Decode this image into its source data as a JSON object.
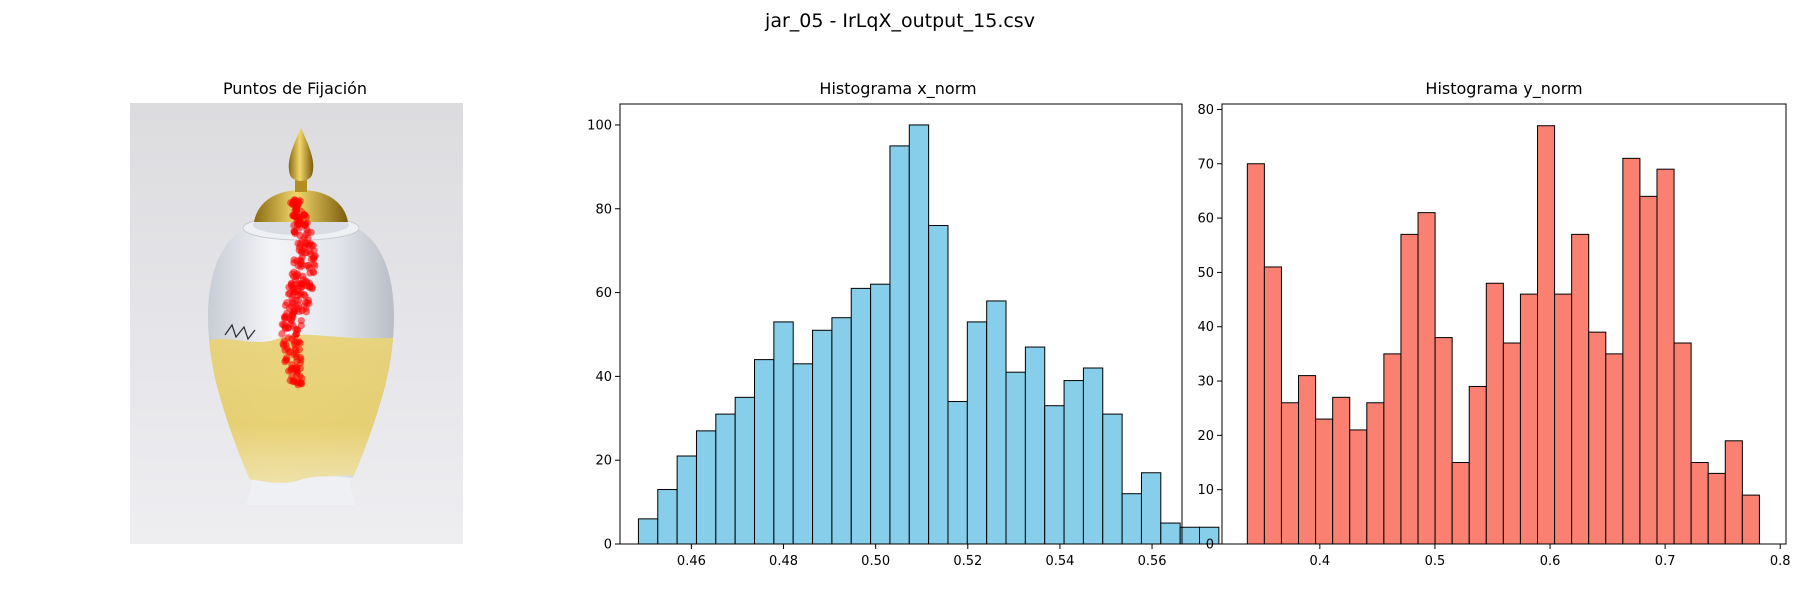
{
  "figure": {
    "suptitle": "jar_05 - IrLqX_output_15.csv"
  },
  "image_panel": {
    "title": "Puntos de Fijación",
    "marker_color": "#ff0000"
  },
  "chart_data": [
    {
      "type": "bar",
      "title": "Histograma x_norm",
      "xlabel": "",
      "ylabel": "",
      "color": "#87ceeb",
      "edgecolor": "#000000",
      "bin_start": 0.4485,
      "bin_width": 0.0042,
      "values": [
        6,
        13,
        21,
        27,
        31,
        35,
        44,
        53,
        43,
        51,
        54,
        61,
        62,
        95,
        100,
        76,
        34,
        53,
        58,
        41,
        47,
        33,
        39,
        42,
        31,
        12,
        17,
        5,
        4,
        4
      ],
      "xlim": [
        0.4445,
        0.5665
      ],
      "ylim": [
        0,
        105
      ],
      "xticks": [
        0.46,
        0.48,
        0.5,
        0.52,
        0.54,
        0.56
      ],
      "xtick_labels": [
        "0.46",
        "0.48",
        "0.50",
        "0.52",
        "0.54",
        "0.56"
      ],
      "yticks": [
        0,
        20,
        40,
        60,
        80,
        100
      ],
      "ytick_labels": [
        "0",
        "20",
        "40",
        "60",
        "80",
        "100"
      ]
    },
    {
      "type": "bar",
      "title": "Histograma y_norm",
      "xlabel": "",
      "ylabel": "",
      "color": "#fa8072",
      "edgecolor": "#000000",
      "bin_start": 0.337,
      "bin_width": 0.01483,
      "values": [
        70,
        51,
        26,
        31,
        23,
        27,
        21,
        26,
        35,
        57,
        61,
        38,
        15,
        29,
        48,
        37,
        46,
        77,
        46,
        57,
        39,
        35,
        71,
        64,
        69,
        37,
        15,
        13,
        19,
        9
      ],
      "xlim": [
        0.315,
        0.805
      ],
      "ylim": [
        0,
        81
      ],
      "xticks": [
        0.4,
        0.5,
        0.6,
        0.7,
        0.8
      ],
      "xtick_labels": [
        "0.4",
        "0.5",
        "0.6",
        "0.7",
        "0.8"
      ],
      "yticks": [
        0,
        10,
        20,
        30,
        40,
        50,
        60,
        70,
        80
      ],
      "ytick_labels": [
        "0",
        "10",
        "20",
        "30",
        "40",
        "50",
        "60",
        "70",
        "80"
      ]
    }
  ]
}
